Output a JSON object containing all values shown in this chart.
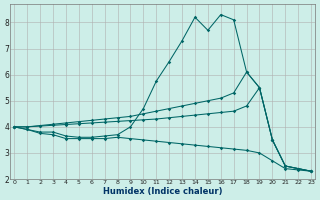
{
  "xlabel": "Humidex (Indice chaleur)",
  "background_color": "#cdeee8",
  "grid_color": "#b0b0b0",
  "line_color": "#006666",
  "x": [
    0,
    1,
    2,
    3,
    4,
    5,
    6,
    7,
    8,
    9,
    10,
    11,
    12,
    13,
    14,
    15,
    16,
    17,
    18,
    19,
    20,
    21,
    22,
    23
  ],
  "s1": [
    4.0,
    3.9,
    3.8,
    3.8,
    3.65,
    3.6,
    3.6,
    3.65,
    3.7,
    4.0,
    4.7,
    5.75,
    6.5,
    7.3,
    8.2,
    7.7,
    8.3,
    8.1,
    6.1,
    5.5,
    3.5,
    2.5,
    2.4,
    2.3
  ],
  "s2": [
    4.0,
    4.0,
    4.05,
    4.1,
    4.15,
    4.2,
    4.25,
    4.3,
    4.35,
    4.4,
    4.5,
    4.6,
    4.7,
    4.8,
    4.9,
    5.0,
    5.1,
    5.3,
    6.1,
    5.5,
    3.5,
    2.5,
    2.4,
    2.3
  ],
  "s3": [
    4.0,
    4.0,
    4.03,
    4.06,
    4.09,
    4.12,
    4.15,
    4.18,
    4.21,
    4.24,
    4.27,
    4.3,
    4.35,
    4.4,
    4.45,
    4.5,
    4.55,
    4.6,
    4.8,
    5.5,
    3.5,
    2.5,
    2.4,
    2.3
  ],
  "s4": [
    4.0,
    3.9,
    3.75,
    3.7,
    3.55,
    3.55,
    3.55,
    3.55,
    3.6,
    3.55,
    3.5,
    3.45,
    3.4,
    3.35,
    3.3,
    3.25,
    3.2,
    3.15,
    3.1,
    3.0,
    2.7,
    2.4,
    2.35,
    2.3
  ],
  "ylim": [
    2,
    8.7
  ],
  "xlim": [
    -0.3,
    23.3
  ],
  "yticks": [
    2,
    3,
    4,
    5,
    6,
    7,
    8
  ],
  "xticks": [
    0,
    1,
    2,
    3,
    4,
    5,
    6,
    7,
    8,
    9,
    10,
    11,
    12,
    13,
    14,
    15,
    16,
    17,
    18,
    19,
    20,
    21,
    22,
    23
  ]
}
